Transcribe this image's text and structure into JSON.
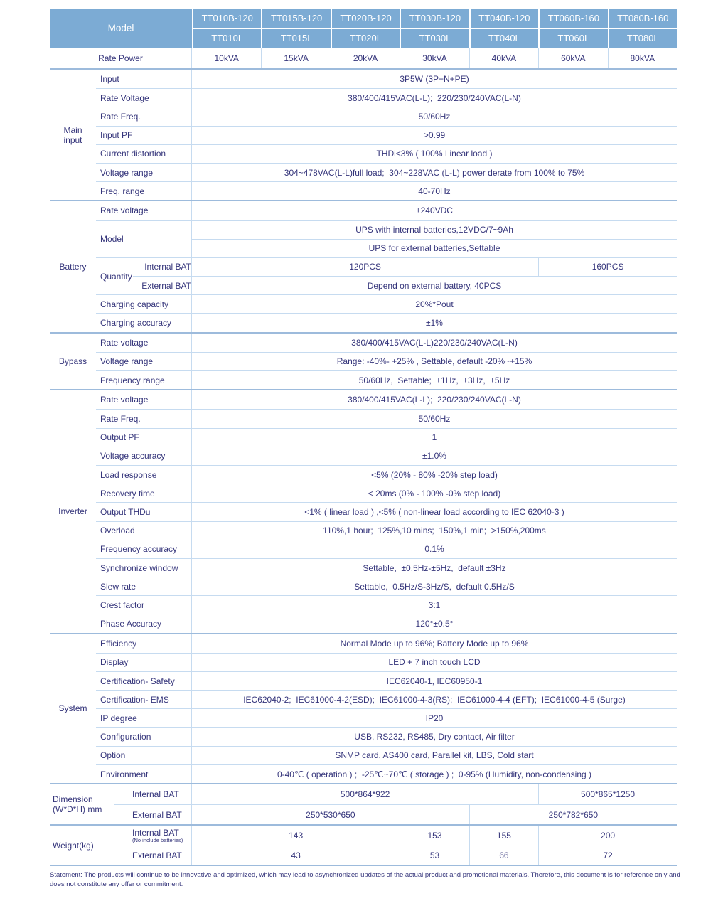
{
  "colors": {
    "header_bg": "#7CABD4",
    "header_text": "#FFFFFF",
    "body_text": "#35357B",
    "border_strong": "#9DBBDC",
    "border_light": "#C6DBF0"
  },
  "header": {
    "model_label": "Model",
    "row1": [
      "TT010B-120",
      "TT015B-120",
      "TT020B-120",
      "TT030B-120",
      "TT040B-120",
      "TT060B-160",
      "TT080B-160"
    ],
    "row2": [
      "TT010L",
      "TT015L",
      "TT020L",
      "TT030L",
      "TT040L",
      "TT060L",
      "TT080L"
    ]
  },
  "rate_power": {
    "label": "Rate Power",
    "values": [
      "10kVA",
      "15kVA",
      "20kVA",
      "30kVA",
      "40kVA",
      "60kVA",
      "80kVA"
    ]
  },
  "main_input": {
    "section_label": "Main\ninput",
    "rows": [
      {
        "label": "Input",
        "value": "3P5W (3P+N+PE)"
      },
      {
        "label": "Rate Voltage",
        "value": "380/400/415VAC(L-L);  220/230/240VAC(L-N)"
      },
      {
        "label": "Rate Freq.",
        "value": "50/60Hz"
      },
      {
        "label": "Input PF",
        "value": ">0.99"
      },
      {
        "label": "Current distortion",
        "value": "THDi<3% ( 100% Linear load )"
      },
      {
        "label": "Voltage range",
        "value": "304~478VAC(L-L)full load;  304~228VAC (L-L) power derate from 100% to 75%"
      },
      {
        "label": "Freq. range",
        "value": "40-70Hz"
      }
    ]
  },
  "battery": {
    "section_label": "Battery",
    "rate_voltage": {
      "label": "Rate voltage",
      "value": "±240VDC"
    },
    "model": {
      "label": "Model",
      "value1": "UPS with internal batteries,12VDC/7~9Ah",
      "value2": "UPS for external batteries,Settable"
    },
    "quantity": {
      "label": "Quantity",
      "internal": {
        "label": "Internal BAT",
        "value_left": "120PCS",
        "value_right": "160PCS"
      },
      "external": {
        "label": "External BAT",
        "value": "Depend on external battery, 40PCS"
      }
    },
    "charging_capacity": {
      "label": "Charging capacity",
      "value": "20%*Pout"
    },
    "charging_accuracy": {
      "label": "Charging accuracy",
      "value": "±1%"
    }
  },
  "bypass": {
    "section_label": "Bypass",
    "rows": [
      {
        "label": "Rate voltage",
        "value": "380/400/415VAC(L-L)220/230/240VAC(L-N)"
      },
      {
        "label": "Voltage range",
        "value": "Range: -40%- +25% , Settable, default -20%~+15%"
      },
      {
        "label": "Frequency range",
        "value": "50/60Hz,  Settable;  ±1Hz,  ±3Hz,  ±5Hz"
      }
    ]
  },
  "inverter": {
    "section_label": "Inverter",
    "rows": [
      {
        "label": "Rate voltage",
        "value": "380/400/415VAC(L-L);  220/230/240VAC(L-N)"
      },
      {
        "label": "Rate Freq.",
        "value": "50/60Hz"
      },
      {
        "label": "Output PF",
        "value": "1"
      },
      {
        "label": "Voltage accuracy",
        "value": "±1.0%"
      },
      {
        "label": "Load response",
        "value": "<5% (20% - 80% -20% step load)"
      },
      {
        "label": "Recovery time",
        "value": "< 20ms (0% - 100% -0% step load)"
      },
      {
        "label": "Output THDu",
        "value": "<1% ( linear load ) ,<5% ( non-linear load according to IEC 62040-3 )"
      },
      {
        "label": "Overload",
        "value": "110%,1 hour;  125%,10 mins;  150%,1 min;  >150%,200ms"
      },
      {
        "label": "Frequency accuracy",
        "value": "0.1%"
      },
      {
        "label": "Synchronize window",
        "value": "Settable,  ±0.5Hz-±5Hz,  default ±3Hz"
      },
      {
        "label": "Slew rate",
        "value": "Settable,  0.5Hz/S-3Hz/S,  default 0.5Hz/S"
      },
      {
        "label": "Crest factor",
        "value": "3:1"
      },
      {
        "label": "Phase Accuracy",
        "value": "120°±0.5°"
      }
    ]
  },
  "system": {
    "section_label": "System",
    "rows": [
      {
        "label": "Efficiency",
        "value": "Normal Mode up to 96%; Battery Mode up to 96%"
      },
      {
        "label": "Display",
        "value": "LED + 7 inch touch LCD"
      },
      {
        "label": "Certification- Safety",
        "value": "IEC62040-1, IEC60950-1"
      },
      {
        "label": "Certification- EMS",
        "value": "IEC62040-2;  IEC61000-4-2(ESD);  IEC61000-4-3(RS);  IEC61000-4-4 (EFT);  IEC61000-4-5 (Surge)"
      },
      {
        "label": "IP degree",
        "value": "IP20"
      },
      {
        "label": "Configuration",
        "value": "USB, RS232, RS485, Dry contact, Air filter"
      },
      {
        "label": "Option",
        "value": "SNMP card, AS400 card, Parallel kit, LBS, Cold start"
      },
      {
        "label": "Environment",
        "value": "0-40℃ ( operation ) ;  -25℃~70℃ ( storage ) ;  0-95% (Humidity, non-condensing )"
      }
    ]
  },
  "dimension": {
    "section_label": "Dimension\n(W*D*H) mm",
    "internal": {
      "label": "Internal BAT",
      "value_left": "500*864*922",
      "value_right": "500*865*1250"
    },
    "external": {
      "label": "External BAT",
      "value_left": "250*530*650",
      "value_right": "250*782*650"
    }
  },
  "weight": {
    "section_label": "Weight(kg)",
    "internal": {
      "label": "Internal BAT",
      "note": "(No include batteries)",
      "values": [
        "143",
        "153",
        "155",
        "200"
      ]
    },
    "external": {
      "label": "External BAT",
      "values": [
        "43",
        "53",
        "66",
        "72"
      ]
    }
  },
  "statement": "Statement: The products will continue to be innovative and optimized, which may lead to asynchronized updates of the actual product and promotional materials. Therefore, this document is for reference only and does not constitute any offer or commitment."
}
